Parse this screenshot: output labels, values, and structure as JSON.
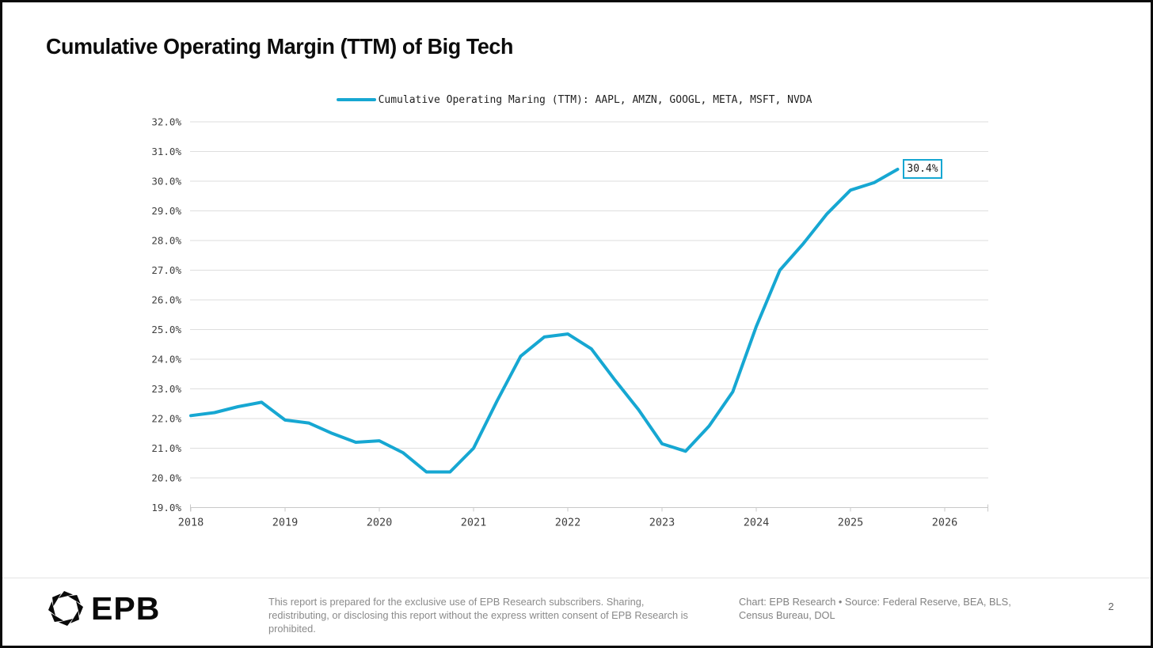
{
  "page": {
    "title": "Cumulative Operating Margin (TTM) of Big Tech",
    "page_number": "2"
  },
  "legend": {
    "label": "Cumulative Operating Maring (TTM): AAPL, AMZN, GOOGL, META, MSFT, NVDA"
  },
  "chart_data": {
    "type": "line",
    "title": "Cumulative Operating Margin (TTM) of Big Tech",
    "legend_position": "top-center",
    "grid": "horizontal",
    "xlabel": "",
    "ylabel": "",
    "ylim": [
      19.0,
      32.0
    ],
    "xlim": [
      2018.0,
      2026.5
    ],
    "y_ticks": [
      "32.0%",
      "31.0%",
      "30.0%",
      "29.0%",
      "28.0%",
      "27.0%",
      "26.0%",
      "25.0%",
      "24.0%",
      "23.0%",
      "22.0%",
      "21.0%",
      "20.0%",
      "19.0%"
    ],
    "x_ticks": [
      "2018",
      "2019",
      "2020",
      "2021",
      "2022",
      "2023",
      "2024",
      "2025",
      "2026"
    ],
    "end_label": "30.4%",
    "series": [
      {
        "name": "Cumulative Operating Maring (TTM): AAPL, AMZN, GOOGL, META, MSFT, NVDA",
        "color": "#16a7d2",
        "x": [
          2018.0,
          2018.25,
          2018.5,
          2018.75,
          2019.0,
          2019.25,
          2019.5,
          2019.75,
          2020.0,
          2020.25,
          2020.5,
          2020.75,
          2021.0,
          2021.25,
          2021.5,
          2021.75,
          2022.0,
          2022.25,
          2022.5,
          2022.75,
          2023.0,
          2023.25,
          2023.5,
          2023.75,
          2024.0,
          2024.25,
          2024.5,
          2024.75,
          2025.0,
          2025.25,
          2025.5
        ],
        "values": [
          22.1,
          22.2,
          22.4,
          22.55,
          21.95,
          21.85,
          21.5,
          21.2,
          21.25,
          20.85,
          20.2,
          20.2,
          21.0,
          22.6,
          24.1,
          24.75,
          24.85,
          24.35,
          23.3,
          22.3,
          21.15,
          20.9,
          21.75,
          22.9,
          25.1,
          27.0,
          27.9,
          28.9,
          29.7,
          29.95,
          30.4
        ]
      }
    ]
  },
  "colors": {
    "line": "#16a7d2",
    "grid": "#dedede",
    "axis": "#c9c9c9",
    "tick_text": "#404040",
    "title": "#0c0c0c"
  },
  "footer": {
    "logo_text": "EPB",
    "disclaimer": "This report is prepared for the exclusive use of EPB Research subscribers. Sharing, redistributing, or disclosing this report without the express written consent of EPB Research is prohibited.",
    "attribution": "Chart: EPB Research  •  Source: Federal Reserve, BEA, BLS, Census Bureau, DOL"
  }
}
